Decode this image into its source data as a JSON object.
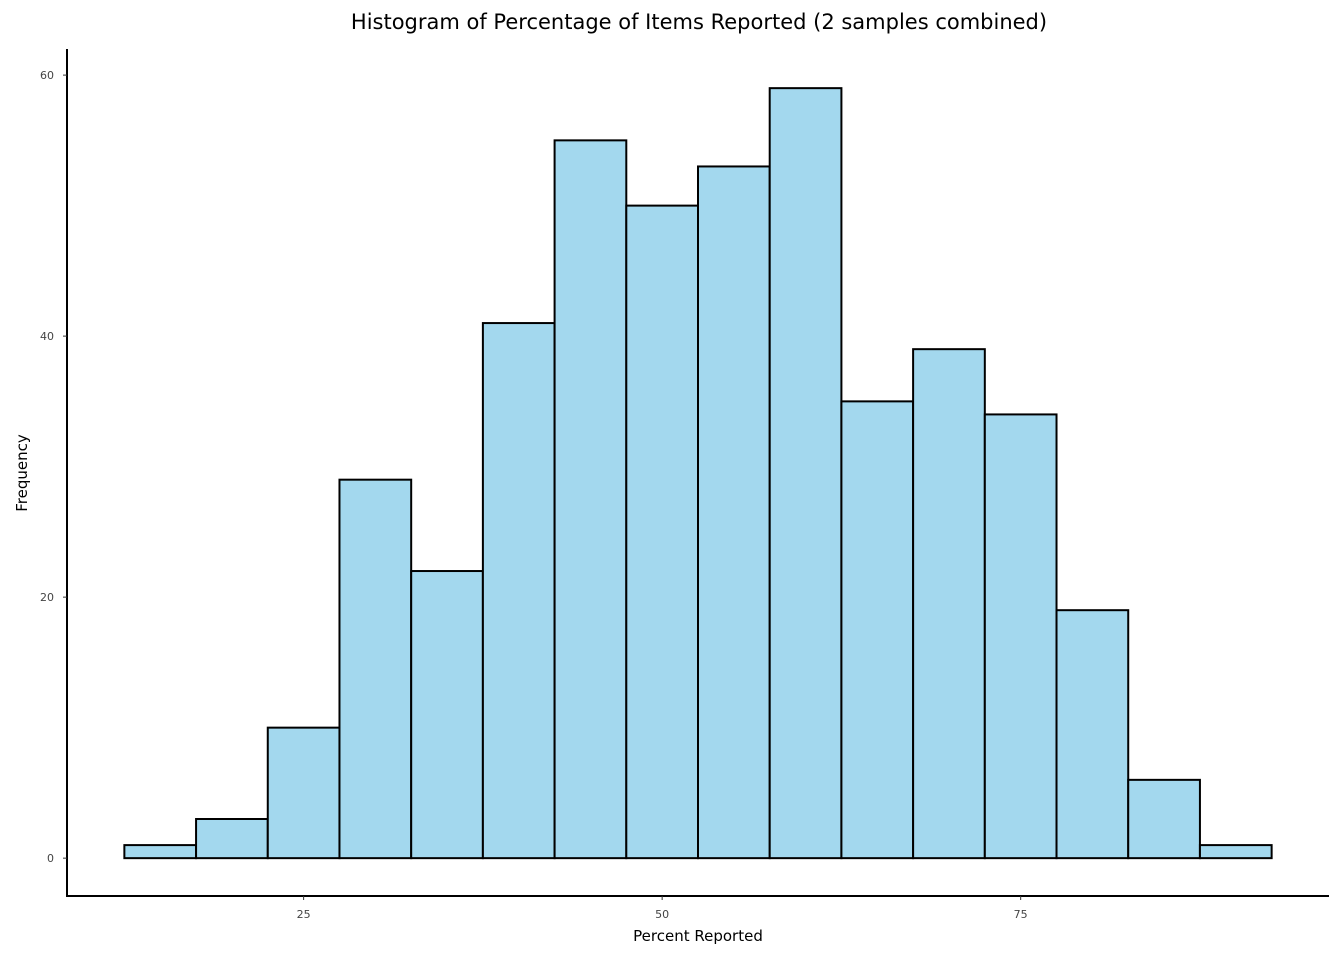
{
  "chart_data": {
    "type": "bar",
    "title": "Histogram of Percentage of Items Reported (2 samples combined)",
    "xlabel": "Percent Reported",
    "ylabel": "Frequency",
    "bin_width": 5,
    "bins": [
      {
        "x_start": 12.5,
        "x_end": 17.5,
        "value": 1
      },
      {
        "x_start": 17.5,
        "x_end": 22.5,
        "value": 3
      },
      {
        "x_start": 22.5,
        "x_end": 27.5,
        "value": 10
      },
      {
        "x_start": 27.5,
        "x_end": 32.5,
        "value": 29
      },
      {
        "x_start": 32.5,
        "x_end": 37.5,
        "value": 22
      },
      {
        "x_start": 37.5,
        "x_end": 42.5,
        "value": 41
      },
      {
        "x_start": 42.5,
        "x_end": 47.5,
        "value": 55
      },
      {
        "x_start": 47.5,
        "x_end": 52.5,
        "value": 50
      },
      {
        "x_start": 52.5,
        "x_end": 57.5,
        "value": 53
      },
      {
        "x_start": 57.5,
        "x_end": 62.5,
        "value": 59
      },
      {
        "x_start": 62.5,
        "x_end": 67.5,
        "value": 35
      },
      {
        "x_start": 67.5,
        "x_end": 72.5,
        "value": 39
      },
      {
        "x_start": 72.5,
        "x_end": 77.5,
        "value": 34
      },
      {
        "x_start": 77.5,
        "x_end": 82.5,
        "value": 19
      },
      {
        "x_start": 82.5,
        "x_end": 87.5,
        "value": 6
      },
      {
        "x_start": 87.5,
        "x_end": 92.5,
        "value": 1
      }
    ],
    "xticks": [
      25,
      50,
      75
    ],
    "yticks": [
      0,
      20,
      40,
      60
    ],
    "xlim": [
      8.5,
      96.5
    ],
    "ylim": [
      -2.9,
      62
    ],
    "grid": false,
    "legend": "none",
    "colors": {
      "bar_fill": "#a3d8ee",
      "bar_stroke": "#000000",
      "axis": "#000000"
    }
  }
}
